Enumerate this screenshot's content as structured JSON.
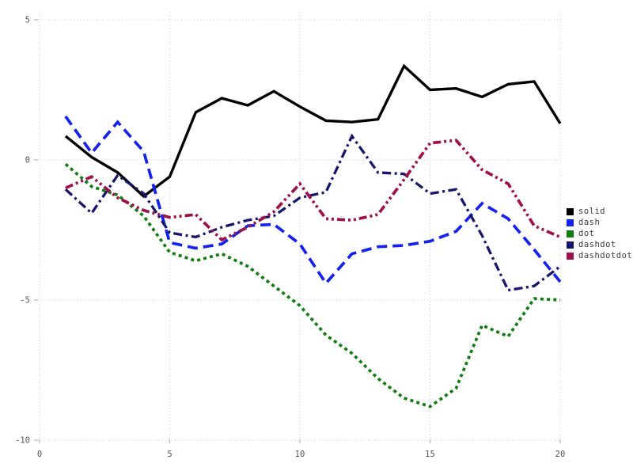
{
  "chart_data": {
    "type": "line",
    "title": "",
    "xlabel": "",
    "ylabel": "",
    "x": [
      1,
      2,
      3,
      4,
      5,
      6,
      7,
      8,
      9,
      10,
      11,
      12,
      13,
      14,
      15,
      16,
      17,
      18,
      19,
      20
    ],
    "series": [
      {
        "name": "solid",
        "color": "#000000",
        "linestyle": "solid",
        "values": [
          0.85,
          0.1,
          -0.45,
          -1.3,
          -0.6,
          1.7,
          2.2,
          1.95,
          2.45,
          1.9,
          1.4,
          1.35,
          1.45,
          3.35,
          2.5,
          2.55,
          2.25,
          2.7,
          2.8,
          1.3
        ]
      },
      {
        "name": "dash",
        "color": "#1522ee",
        "linestyle": "dash",
        "values": [
          1.55,
          0.25,
          1.35,
          0.3,
          -2.95,
          -3.15,
          -3.0,
          -2.35,
          -2.3,
          -3.0,
          -4.4,
          -3.35,
          -3.1,
          -3.05,
          -2.9,
          -2.55,
          -1.55,
          -2.1,
          -3.2,
          -4.35
        ]
      },
      {
        "name": "dot",
        "color": "#117d11",
        "linestyle": "dot",
        "values": [
          -0.15,
          -0.95,
          -1.25,
          -2.0,
          -3.3,
          -3.6,
          -3.35,
          -3.8,
          -4.5,
          -5.2,
          -6.25,
          -6.9,
          -7.8,
          -8.5,
          -8.8,
          -8.15,
          -5.9,
          -6.3,
          -4.95,
          -5.0
        ]
      },
      {
        "name": "dashdot",
        "color": "#16166b",
        "linestyle": "dashdot",
        "values": [
          -1.05,
          -1.9,
          -0.55,
          -1.2,
          -2.6,
          -2.75,
          -2.4,
          -2.15,
          -2.0,
          -1.35,
          -1.15,
          0.85,
          -0.45,
          -0.5,
          -1.2,
          -1.05,
          -2.7,
          -4.65,
          -4.5,
          -3.8
        ]
      },
      {
        "name": "dashdotdot",
        "color": "#9e1049",
        "linestyle": "dashdotdot",
        "values": [
          -1.0,
          -0.6,
          -1.35,
          -1.8,
          -2.05,
          -1.95,
          -2.85,
          -2.4,
          -1.85,
          -0.85,
          -2.1,
          -2.15,
          -1.95,
          -0.7,
          0.6,
          0.7,
          -0.35,
          -0.85,
          -2.35,
          -2.75
        ]
      }
    ],
    "xlim": [
      0,
      20
    ],
    "ylim": [
      -10,
      5
    ],
    "xticks": [
      "0",
      "5",
      "10",
      "15",
      "20"
    ],
    "xtick_values": [
      0,
      5,
      10,
      15,
      20
    ],
    "yticks": [
      "5",
      "0",
      "-5",
      "-10"
    ],
    "ytick_values": [
      5,
      0,
      -5,
      -10
    ],
    "grid": true,
    "grid_style": "dotted",
    "legend_position": "center-right",
    "legend_entries": [
      "solid",
      "dash",
      "dot",
      "dashdot",
      "dashdotdot"
    ],
    "colors": {
      "gridline": "#d6d6e4",
      "tick_mark": "#b9b5bf",
      "tick_label": "#57525b",
      "background": "#ffffff"
    }
  }
}
